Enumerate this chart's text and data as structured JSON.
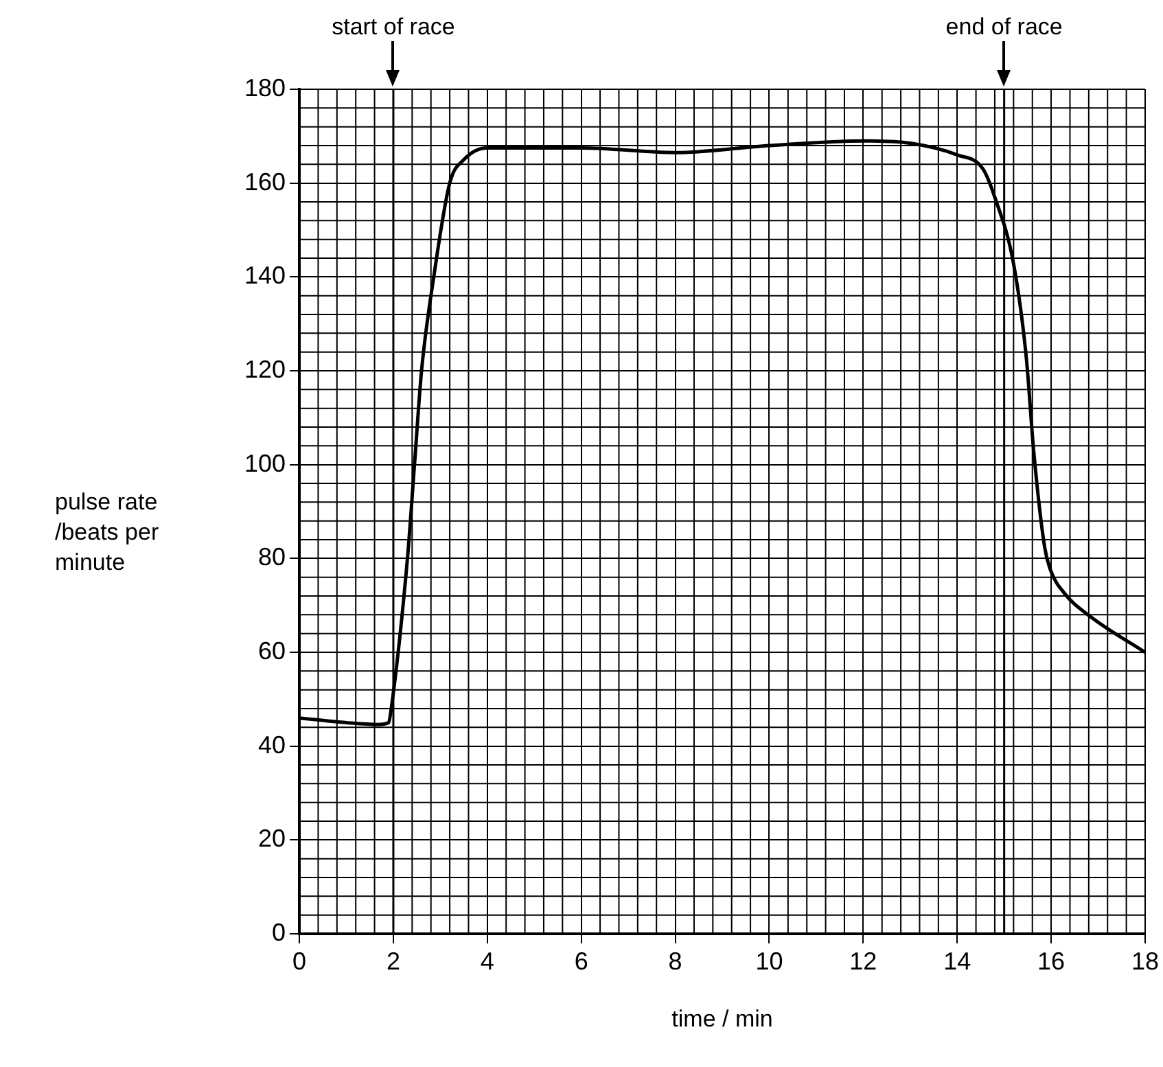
{
  "chart_data": {
    "type": "line",
    "xlabel": "time / min",
    "ylabel": "pulse rate /beats per minute",
    "x": [
      0,
      1,
      1.67,
      1.9,
      1.95,
      2.3,
      2.45,
      2.6,
      2.86,
      3.2,
      3.5,
      4,
      6,
      8,
      10,
      12,
      13,
      14,
      14.55,
      14.8,
      15.2,
      15.47,
      15.63,
      15.86,
      15.98,
      16.28,
      16.85,
      18
    ],
    "series": [
      {
        "color": "#000000",
        "values": [
          46,
          45,
          44.6,
          45,
          47.6,
          80,
          100,
          120,
          140,
          160,
          165,
          167.5,
          167.5,
          166.5,
          168,
          169,
          168.5,
          166,
          163,
          157,
          142.8,
          122.9,
          102.7,
          82.5,
          77.7,
          72.6,
          67.5,
          60
        ]
      }
    ],
    "xlim": [
      0,
      18
    ],
    "xticks": [
      0,
      2,
      4,
      6,
      8,
      10,
      12,
      14,
      16,
      18
    ],
    "ylim": [
      0,
      180
    ],
    "yticks": [
      0,
      20,
      40,
      60,
      80,
      100,
      120,
      140,
      160,
      180
    ],
    "grid": true,
    "legend": false,
    "marker": "none",
    "line_style": "solid",
    "ref_lines": [
      {
        "axis": "x",
        "value": 2,
        "label": "start of race"
      },
      {
        "axis": "x",
        "value": 15,
        "label": "end of race"
      }
    ]
  }
}
